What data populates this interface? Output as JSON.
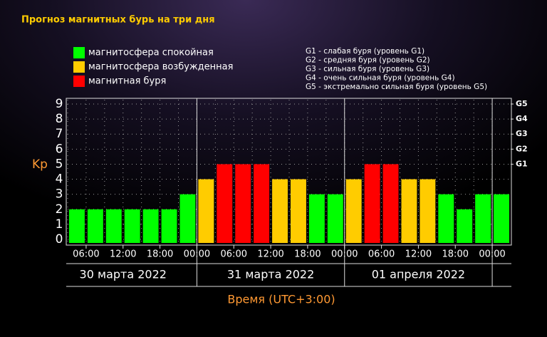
{
  "chart_data": {
    "type": "bar",
    "title": "Прогноз магнитных бурь на три дня",
    "legend": [
      {
        "name": "магнитосфера спокойная",
        "color": "#00ff00"
      },
      {
        "name": "магнитосфера возбужденная",
        "color": "#ffcc00"
      },
      {
        "name": "магнитная буря",
        "color": "#ff0000"
      }
    ],
    "storm_levels": [
      "G1 - слабая буря (уровень G1)",
      "G2 - средняя буря (уровень G2)",
      "G3 - сильная буря (уровень G3)",
      "G4 - очень сильная буря (уровень G4)",
      "G5 - экстремально сильная буря (уровень G5)"
    ],
    "y_label": "Kp",
    "x_label": "Время (UTC+3:00)",
    "x": [
      3,
      6,
      9,
      12,
      15,
      18,
      21,
      24,
      27,
      30,
      33,
      36,
      39,
      42,
      45,
      48,
      51,
      54,
      57,
      60,
      63,
      66,
      69,
      72
    ],
    "values": [
      2,
      2,
      2,
      2,
      2,
      2,
      3,
      4,
      5,
      5,
      5,
      4,
      4,
      3,
      3,
      4,
      5,
      5,
      4,
      4,
      3,
      2,
      3,
      3
    ],
    "colors": [
      "#00ff00",
      "#00ff00",
      "#00ff00",
      "#00ff00",
      "#00ff00",
      "#00ff00",
      "#00ff00",
      "#ffcc00",
      "#ff0000",
      "#ff0000",
      "#ff0000",
      "#ffcc00",
      "#ffcc00",
      "#00ff00",
      "#00ff00",
      "#ffcc00",
      "#ff0000",
      "#ff0000",
      "#ffcc00",
      "#ffcc00",
      "#00ff00",
      "#00ff00",
      "#00ff00",
      "#00ff00"
    ],
    "bar_hours": 3,
    "xlim": [
      3,
      75
    ],
    "xticks": [
      {
        "value": 6,
        "label": "06:00"
      },
      {
        "value": 12,
        "label": "12:00"
      },
      {
        "value": 18,
        "label": "18:00"
      },
      {
        "value": 24,
        "label": "00:00"
      },
      {
        "value": 30,
        "label": "06:00"
      },
      {
        "value": 36,
        "label": "12:00"
      },
      {
        "value": 42,
        "label": "18:00"
      },
      {
        "value": 48,
        "label": "00:00"
      },
      {
        "value": 54,
        "label": "06:00"
      },
      {
        "value": 60,
        "label": "12:00"
      },
      {
        "value": 66,
        "label": "18:00"
      },
      {
        "value": 72,
        "label": "00:00"
      }
    ],
    "days": [
      {
        "value": 0,
        "label": "30 марта 2022"
      },
      {
        "value": 24,
        "label": "31 марта 2022"
      },
      {
        "value": 48,
        "label": "01 апреля 2022"
      }
    ],
    "ylim": [
      0,
      9
    ],
    "yticks": [
      0,
      1,
      2,
      3,
      4,
      5,
      6,
      7,
      8,
      9
    ],
    "gticks": [
      {
        "value": 5,
        "label": "G1"
      },
      {
        "value": 6,
        "label": "G2"
      },
      {
        "value": 7,
        "label": "G3"
      },
      {
        "value": 8,
        "label": "G4"
      },
      {
        "value": 9,
        "label": "G5"
      }
    ],
    "grid": true
  }
}
